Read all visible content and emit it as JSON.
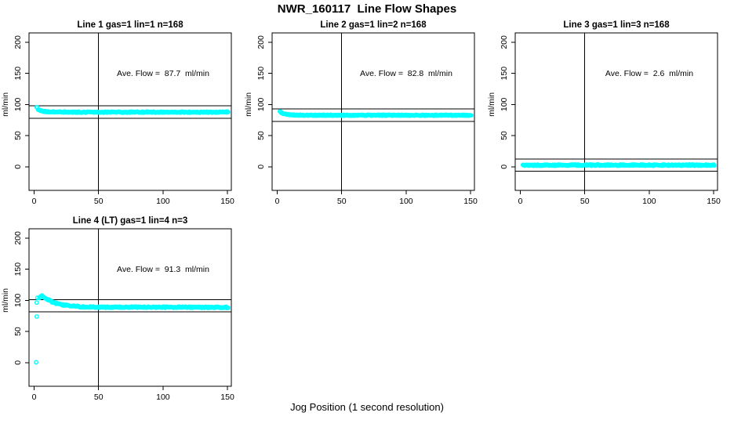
{
  "window": {
    "background": "#ffffff"
  },
  "chart_data": {
    "type": "scatter",
    "title": "NWR_160117  Line Flow Shapes",
    "xlabel": "Jog Position (1 second resolution)",
    "ylabel": "ml/min",
    "point_color": "#00ffff",
    "axis_color": "#000000",
    "grid": false,
    "legend": "none",
    "x_ticks": [
      0,
      50,
      100,
      150
    ],
    "y_ticks": [
      0,
      50,
      100,
      150,
      200
    ],
    "x_range": [
      -4,
      153
    ],
    "y_range": [
      -38,
      215
    ],
    "panels": [
      {
        "title": "Line 1 gas=1 lin=1 n=168",
        "annotation": "Ave. Flow =  87.7  ml/min",
        "ave_flow_ml_min": 87.7,
        "gas": 1,
        "lin": 1,
        "n": 168,
        "vline_x": 50,
        "hlines": [
          97.7,
          77.7
        ],
        "jitter": 0.9,
        "x_start": 2,
        "x_end": 150,
        "control_points": [
          [
            2,
            95
          ],
          [
            3,
            91.5
          ],
          [
            4,
            90.2
          ],
          [
            6,
            89.2
          ],
          [
            9,
            88.5
          ],
          [
            14,
            88
          ],
          [
            25,
            87.8
          ],
          [
            50,
            87.6
          ],
          [
            80,
            87.7
          ],
          [
            110,
            87.6
          ],
          [
            150,
            87.7
          ]
        ],
        "outliers": []
      },
      {
        "title": "Line 2 gas=1 lin=2 n=168",
        "annotation": "Ave. Flow =  82.8  ml/min",
        "ave_flow_ml_min": 82.8,
        "gas": 1,
        "lin": 2,
        "n": 168,
        "vline_x": 50,
        "hlines": [
          92.8,
          72.8
        ],
        "jitter": 0.8,
        "x_start": 2,
        "x_end": 150,
        "control_points": [
          [
            2,
            88.5
          ],
          [
            3,
            86.5
          ],
          [
            4,
            85.2
          ],
          [
            6,
            84.2
          ],
          [
            9,
            83.5
          ],
          [
            14,
            83
          ],
          [
            25,
            82.8
          ],
          [
            50,
            82.7
          ],
          [
            80,
            82.8
          ],
          [
            110,
            82.7
          ],
          [
            150,
            82.8
          ]
        ],
        "outliers": []
      },
      {
        "title": "Line 3 gas=1 lin=3 n=168",
        "annotation": "Ave. Flow =  2.6  ml/min",
        "ave_flow_ml_min": 2.6,
        "gas": 1,
        "lin": 3,
        "n": 168,
        "vline_x": 50,
        "hlines": [
          12.6,
          -7.4
        ],
        "jitter": 1.0,
        "x_start": 2,
        "x_end": 150,
        "control_points": [
          [
            2,
            2.4
          ],
          [
            20,
            2.5
          ],
          [
            50,
            2.6
          ],
          [
            100,
            2.6
          ],
          [
            150,
            2.6
          ]
        ],
        "outliers": []
      },
      {
        "title": "Line 4 (LT) gas=1 lin=4 n=3",
        "annotation": "Ave. Flow =  91.3  ml/min",
        "ave_flow_ml_min": 91.3,
        "gas": 1,
        "lin": 4,
        "n": 3,
        "vline_x": 50,
        "hlines": [
          101.3,
          81.3
        ],
        "jitter": 1.0,
        "x_start": 4,
        "x_end": 150,
        "control_points": [
          [
            4,
            104.5
          ],
          [
            5,
            107
          ],
          [
            6,
            107.5
          ],
          [
            7,
            106
          ],
          [
            8,
            104.5
          ],
          [
            10,
            101.5
          ],
          [
            12,
            99.5
          ],
          [
            14,
            97.5
          ],
          [
            16,
            96
          ],
          [
            18,
            94.5
          ],
          [
            20,
            93.5
          ],
          [
            24,
            92
          ],
          [
            28,
            91
          ],
          [
            32,
            90.3
          ],
          [
            36,
            89.7
          ],
          [
            40,
            89.3
          ],
          [
            50,
            89
          ],
          [
            60,
            89
          ],
          [
            70,
            89.2
          ],
          [
            85,
            89
          ],
          [
            100,
            88.9
          ],
          [
            115,
            89
          ],
          [
            130,
            88.8
          ],
          [
            150,
            88.8
          ]
        ],
        "outliers": [
          [
            1.5,
            0.5
          ],
          [
            2,
            74
          ],
          [
            2,
            96.5
          ],
          [
            2.5,
            104
          ]
        ]
      }
    ]
  }
}
